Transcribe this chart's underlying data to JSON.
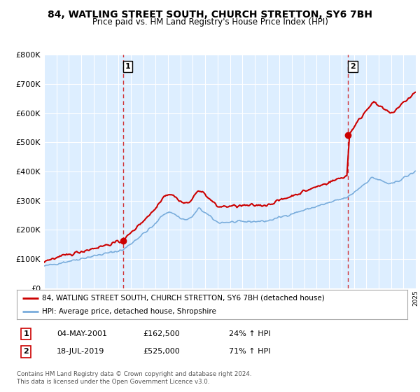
{
  "title": "84, WATLING STREET SOUTH, CHURCH STRETTON, SY6 7BH",
  "subtitle": "Price paid vs. HM Land Registry's House Price Index (HPI)",
  "legend_label_red": "84, WATLING STREET SOUTH, CHURCH STRETTON, SY6 7BH (detached house)",
  "legend_label_blue": "HPI: Average price, detached house, Shropshire",
  "annotation1_label": "1",
  "annotation1_date": "04-MAY-2001",
  "annotation1_price": "£162,500",
  "annotation1_hpi": "24% ↑ HPI",
  "annotation2_label": "2",
  "annotation2_date": "18-JUL-2019",
  "annotation2_price": "£525,000",
  "annotation2_hpi": "71% ↑ HPI",
  "footnote1": "Contains HM Land Registry data © Crown copyright and database right 2024.",
  "footnote2": "This data is licensed under the Open Government Licence v3.0.",
  "red_color": "#cc0000",
  "blue_color": "#7aaddc",
  "background_color": "#ffffff",
  "plot_bg_color": "#ddeeff",
  "grid_color": "#ffffff",
  "ylim_min": 0,
  "ylim_max": 800000,
  "sale1_year": 2001.37,
  "sale1_price": 162500,
  "sale2_year": 2019.54,
  "sale2_price": 525000,
  "xmin": 1995,
  "xmax": 2025
}
